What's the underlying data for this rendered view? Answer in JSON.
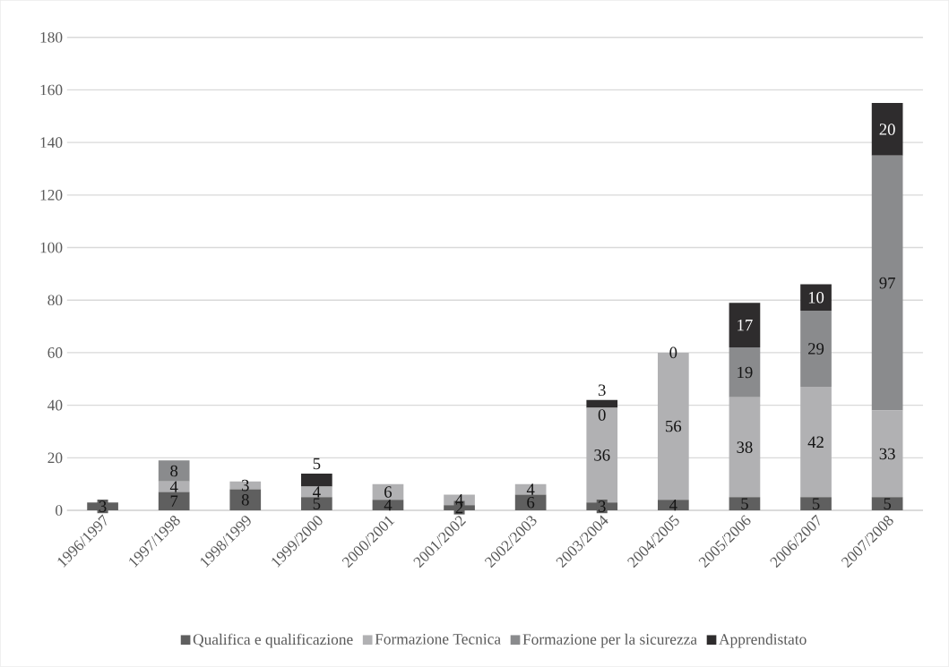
{
  "chart_data": {
    "type": "bar",
    "stacked": true,
    "categories": [
      "1996/1997",
      "1997/1998",
      "1998/1999",
      "1999/2000",
      "2000/2001",
      "2001/2002",
      "2002/2003",
      "2003/2004",
      "2004/2005",
      "2005/2006",
      "2006/2007",
      "2007/2008"
    ],
    "series": [
      {
        "name": "Qualifica e qualificazione",
        "color": "#5f5f5f",
        "values": [
          3,
          7,
          8,
          5,
          4,
          2,
          6,
          3,
          4,
          5,
          5,
          5
        ],
        "value_labels": [
          "3",
          "7",
          "8",
          "5",
          "4",
          "2",
          "6",
          "3",
          "4",
          "5",
          "5",
          "5"
        ]
      },
      {
        "name": "Formazione Tecnica",
        "color": "#b1b1b3",
        "values": [
          0,
          4,
          3,
          4,
          6,
          4,
          4,
          36,
          56,
          38,
          42,
          33
        ],
        "value_labels": [
          null,
          "4",
          "3",
          "4",
          "6",
          "4",
          "4",
          "36",
          "56",
          "38",
          "42",
          "33"
        ]
      },
      {
        "name": "Formazione per la sicurezza",
        "color": "#8a8b8d",
        "values": [
          0,
          8,
          0,
          0,
          0,
          0,
          0,
          0,
          0,
          19,
          29,
          97
        ],
        "value_labels": [
          null,
          "8",
          null,
          null,
          null,
          null,
          null,
          "0",
          "0",
          "19",
          "29",
          "97"
        ]
      },
      {
        "name": "Apprendistato",
        "color": "#2e2c2d",
        "values": [
          0,
          0,
          0,
          5,
          0,
          0,
          0,
          3,
          0,
          17,
          10,
          20
        ],
        "value_labels": [
          null,
          null,
          null,
          "5",
          null,
          null,
          null,
          "3",
          null,
          "17",
          "10",
          "20"
        ]
      }
    ],
    "ylim": [
      0,
      180
    ],
    "yticks": [
      0,
      20,
      40,
      60,
      80,
      100,
      120,
      140,
      160,
      180
    ],
    "grid": "y",
    "legend": "bottom"
  }
}
